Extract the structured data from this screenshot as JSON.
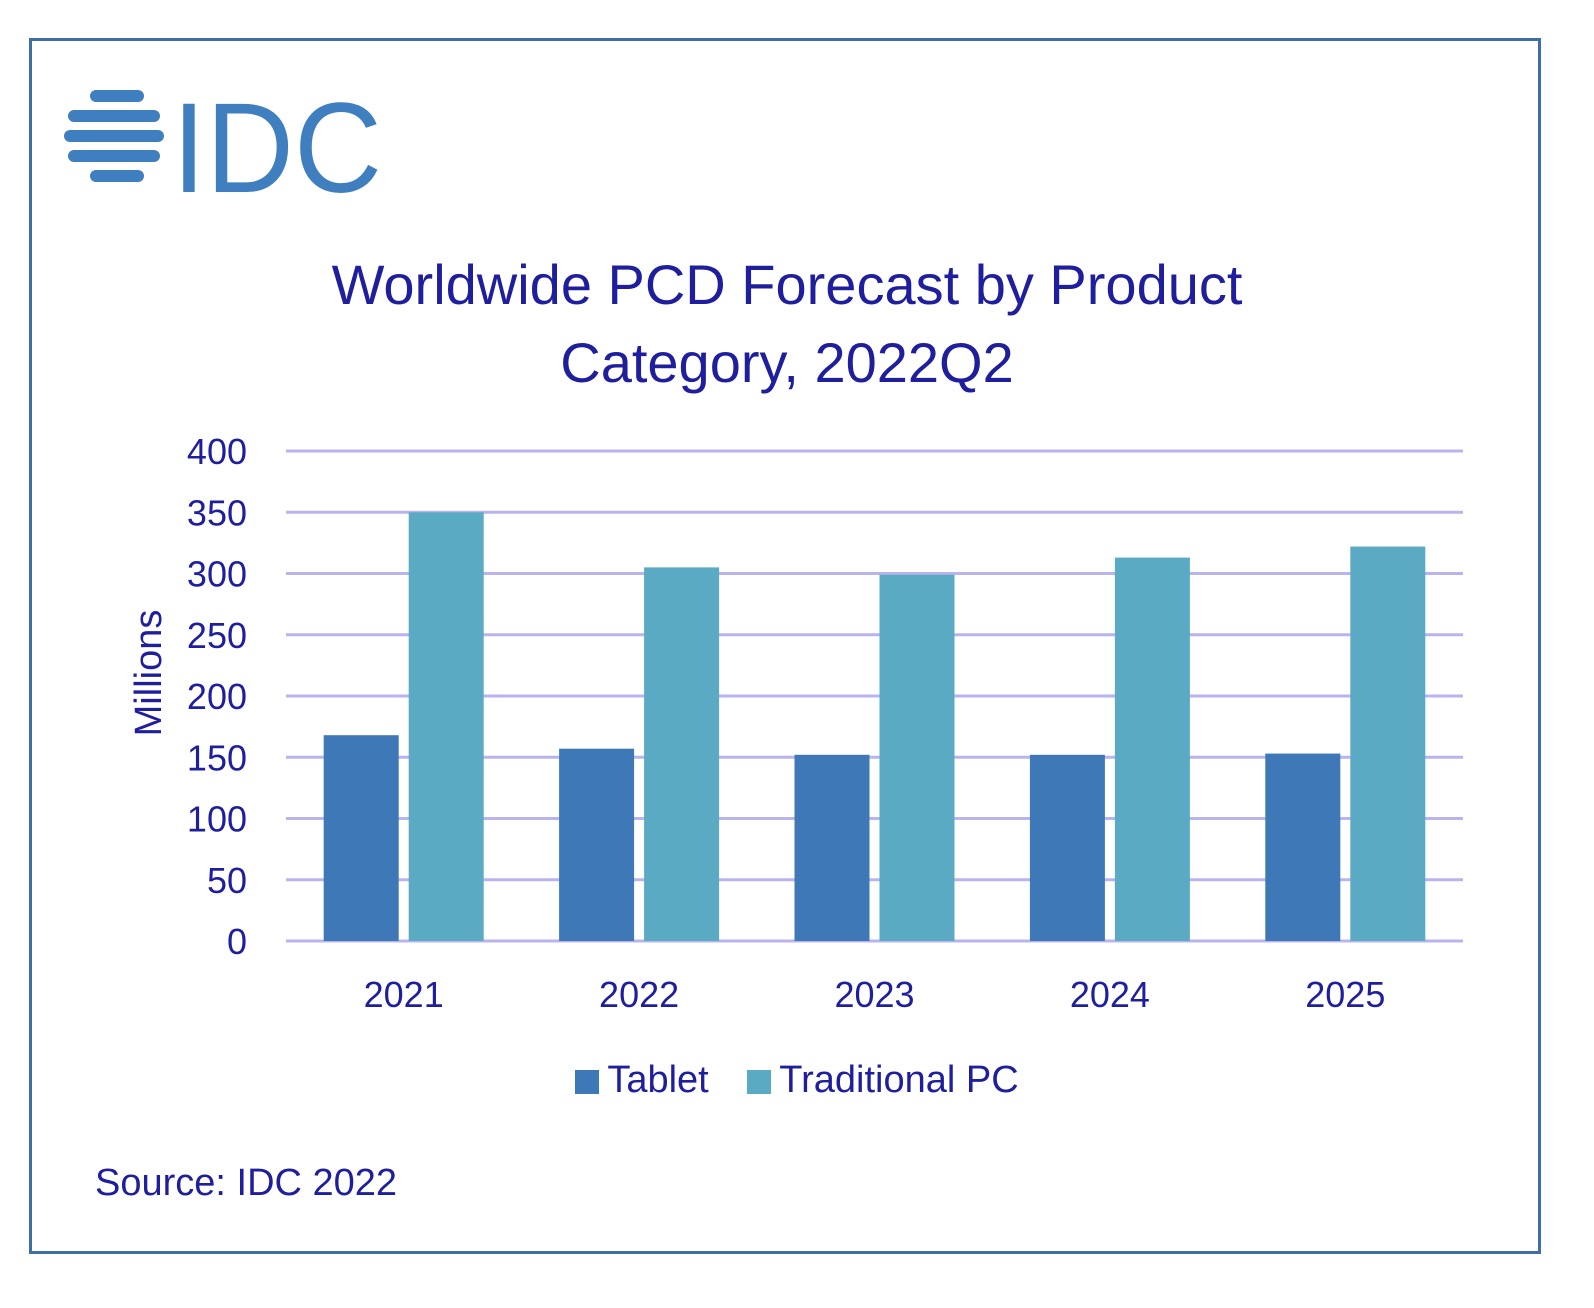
{
  "logo": {
    "text": "IDC",
    "color": "#3f7fbf"
  },
  "title_line1": "Worldwide PCD Forecast by Product",
  "title_line2": "Category, 2022Q2",
  "source": "Source: IDC 2022",
  "colors": {
    "tablet": "#3e78b6",
    "traditional_pc": "#5aaac4",
    "grid": "#b9b4ee",
    "text": "#1f1f9e",
    "border": "#3f6fa6"
  },
  "chart_data": {
    "type": "bar",
    "title": "Worldwide PCD Forecast by Product Category, 2022Q2",
    "xlabel": "",
    "ylabel": "Millions",
    "categories": [
      "2021",
      "2022",
      "2023",
      "2024",
      "2025"
    ],
    "series": [
      {
        "name": "Tablet",
        "values": [
          168,
          157,
          152,
          152,
          153
        ]
      },
      {
        "name": "Traditional PC",
        "values": [
          350,
          305,
          299,
          313,
          322
        ]
      }
    ],
    "ylim": [
      0,
      400
    ],
    "yticks": [
      0,
      50,
      100,
      150,
      200,
      250,
      300,
      350,
      400
    ],
    "grid": true,
    "legend": "bottom"
  }
}
